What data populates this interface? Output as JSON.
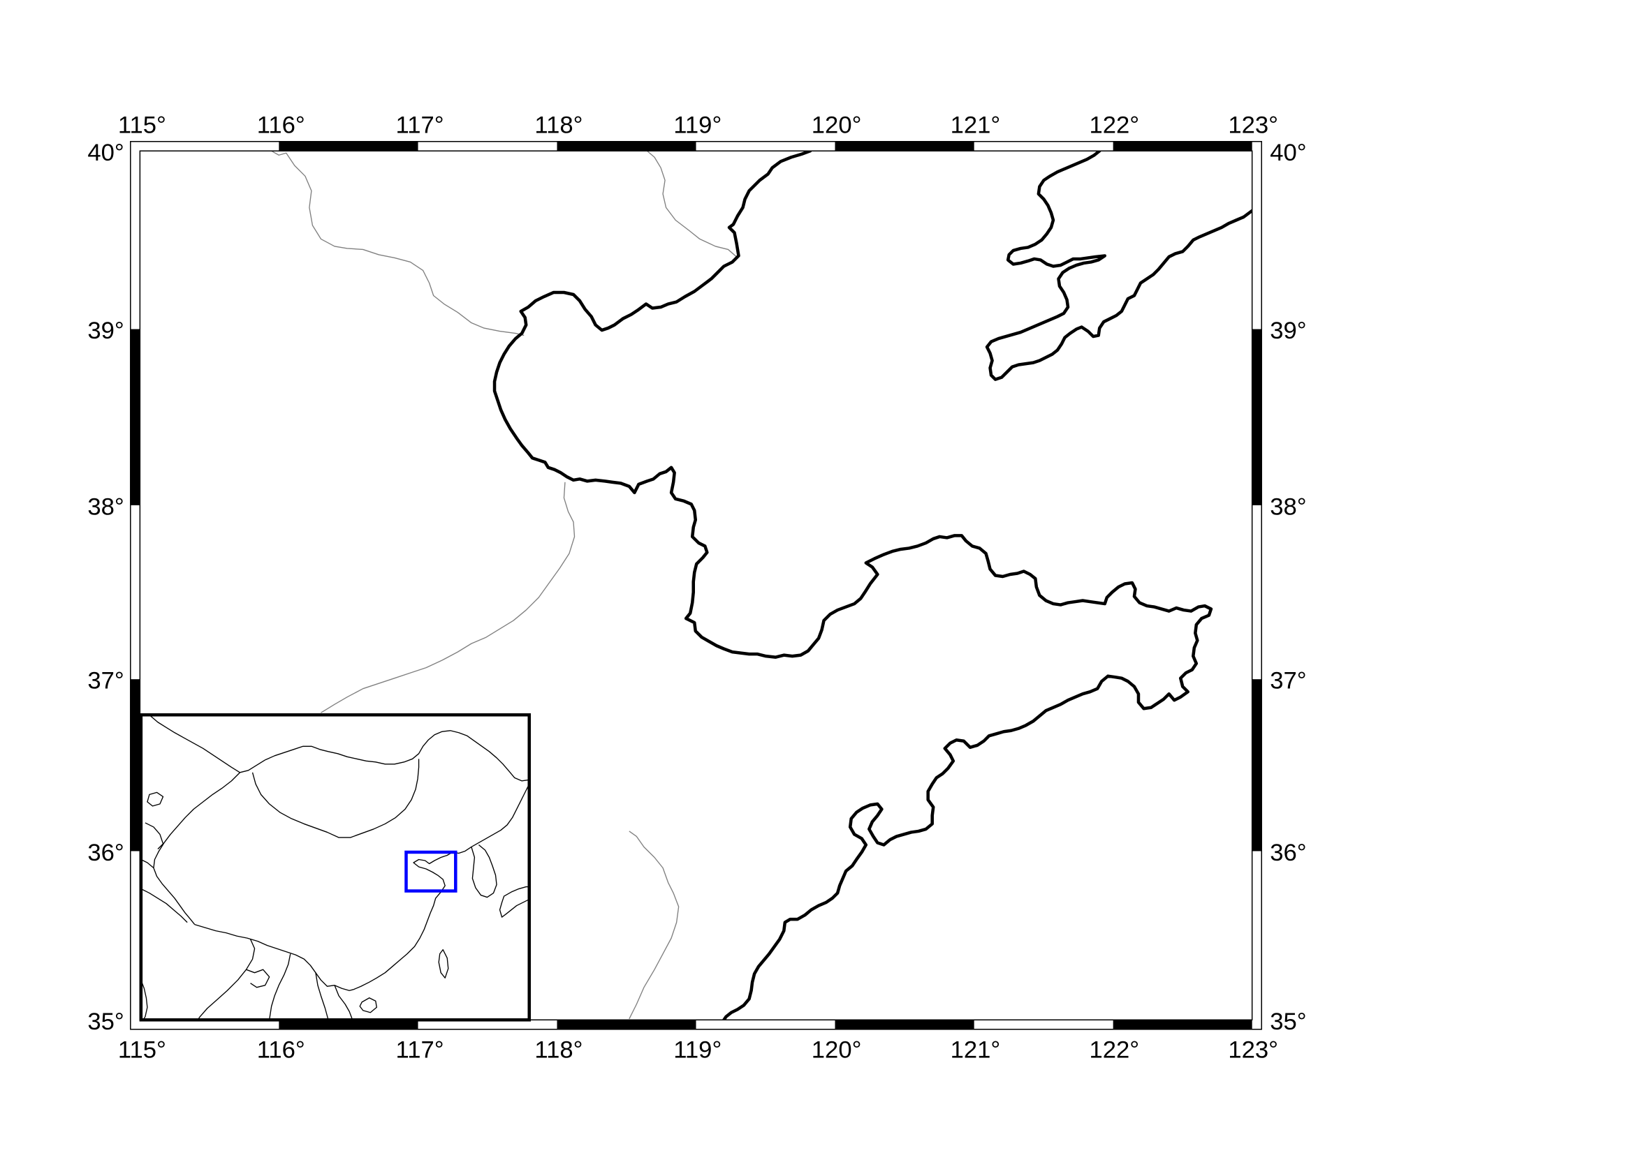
{
  "map": {
    "extent": {
      "lon_min": 115,
      "lon_max": 123,
      "lat_min": 35,
      "lat_max": 40
    },
    "lon_labels": [
      "115°",
      "116°",
      "117°",
      "118°",
      "119°",
      "120°",
      "121°",
      "122°",
      "123°"
    ],
    "lat_labels": [
      "40°",
      "39°",
      "38°",
      "37°",
      "36°",
      "35°"
    ],
    "colors": {
      "coastline": "#000000",
      "boundary": "#808080",
      "frame": "#000000",
      "background": "#ffffff"
    }
  },
  "inset": {
    "colors": {
      "outline": "#000000",
      "highlight_box": "#0000ff"
    }
  }
}
